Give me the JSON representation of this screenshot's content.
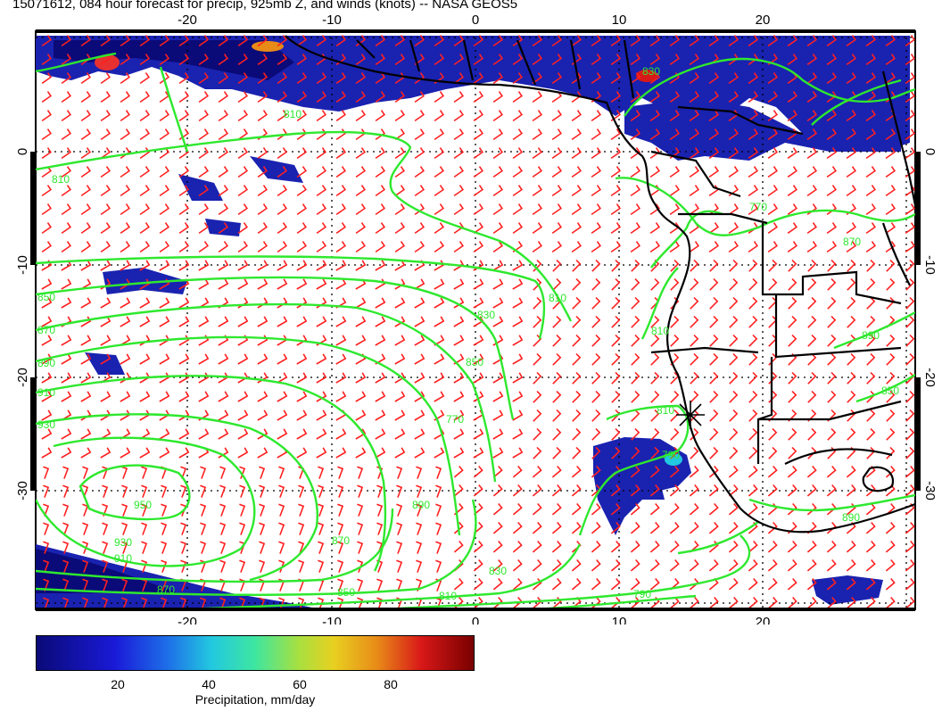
{
  "title": "15071612, 084 hour forecast for precip, 925mb Z, and winds (knots) -- NASA GEOS5",
  "map": {
    "lon_ticks": [
      "-20",
      "-10",
      "0",
      "10",
      "20"
    ],
    "lat_ticks": [
      "0",
      "-10",
      "-20",
      "-30"
    ],
    "contour_labels": [
      "810",
      "810",
      "850",
      "870",
      "890",
      "910",
      "930",
      "950",
      "930",
      "910",
      "870",
      "850",
      "830",
      "810",
      "870",
      "890",
      "830",
      "850",
      "810",
      "790",
      "770",
      "790",
      "810",
      "830",
      "810",
      "770",
      "870",
      "890",
      "850",
      "890"
    ],
    "colors": {
      "precip_dark": "#0a0a78",
      "precip_mid": "#2030c8",
      "contour": "#2ee82e",
      "wind_barb": "#ff2020",
      "coastline": "#000000"
    }
  },
  "colorbar": {
    "ticks": [
      "20",
      "40",
      "60",
      "80"
    ],
    "title": "Precipitation, mm/day"
  }
}
